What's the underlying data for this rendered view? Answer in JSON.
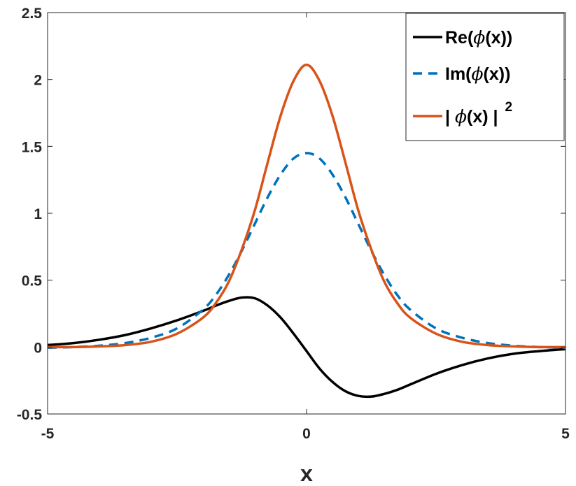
{
  "chart_data": {
    "type": "line",
    "title": "",
    "xlabel": "x",
    "ylabel": "",
    "xlim": [
      -5,
      5
    ],
    "ylim": [
      -0.5,
      2.5
    ],
    "grid": false,
    "legend_position": "top-right",
    "x_ticks": [
      -5,
      0,
      5
    ],
    "x_tick_labels": [
      "-5",
      "0",
      "5"
    ],
    "y_ticks": [
      -0.5,
      0,
      0.5,
      1,
      1.5,
      2,
      2.5
    ],
    "y_tick_labels": [
      "-0.5",
      "0",
      "0.5",
      "1",
      "1.5",
      "2",
      "2.5"
    ],
    "x": [
      -5,
      -4.5,
      -4,
      -3.5,
      -3,
      -2.5,
      -2,
      -1.75,
      -1.5,
      -1.25,
      -1,
      -0.75,
      -0.5,
      -0.25,
      0,
      0.25,
      0.5,
      0.75,
      1,
      1.25,
      1.5,
      1.75,
      2,
      2.5,
      3,
      3.5,
      4,
      4.5,
      5
    ],
    "series": [
      {
        "name": "Re(ϕ(x))",
        "color": "#000000",
        "dash": "solid",
        "values": [
          0.015,
          0.03,
          0.055,
          0.09,
          0.14,
          0.2,
          0.27,
          0.31,
          0.345,
          0.37,
          0.365,
          0.31,
          0.22,
          0.1,
          -0.03,
          -0.16,
          -0.26,
          -0.33,
          -0.365,
          -0.37,
          -0.35,
          -0.32,
          -0.28,
          -0.2,
          -0.135,
          -0.085,
          -0.05,
          -0.03,
          -0.015
        ]
      },
      {
        "name": "Im(ϕ(x))",
        "color": "#0072BD",
        "dash": "dashed",
        "values": [
          -0.005,
          0.0,
          0.01,
          0.03,
          0.07,
          0.14,
          0.28,
          0.39,
          0.54,
          0.72,
          0.92,
          1.12,
          1.29,
          1.41,
          1.45,
          1.41,
          1.29,
          1.12,
          0.92,
          0.72,
          0.54,
          0.39,
          0.28,
          0.14,
          0.07,
          0.03,
          0.01,
          0.0,
          -0.005
        ]
      },
      {
        "name": "| ϕ(x) |²",
        "color": "#D95319",
        "dash": "solid",
        "values": [
          0.0,
          0.0,
          0.005,
          0.015,
          0.04,
          0.1,
          0.22,
          0.33,
          0.49,
          0.73,
          1.02,
          1.38,
          1.73,
          1.99,
          2.11,
          1.99,
          1.73,
          1.38,
          1.02,
          0.73,
          0.49,
          0.33,
          0.22,
          0.1,
          0.04,
          0.015,
          0.005,
          0.0,
          0.0
        ]
      }
    ],
    "legend": {
      "entries": [
        {
          "prefix": "Re(",
          "symbol": "ϕ",
          "suffix": "(x))",
          "sup": ""
        },
        {
          "prefix": "Im(",
          "symbol": "ϕ",
          "suffix": "(x))",
          "sup": ""
        },
        {
          "prefix": "| ",
          "symbol": "ϕ",
          "suffix": "(x) |",
          "sup": "2"
        }
      ]
    }
  }
}
